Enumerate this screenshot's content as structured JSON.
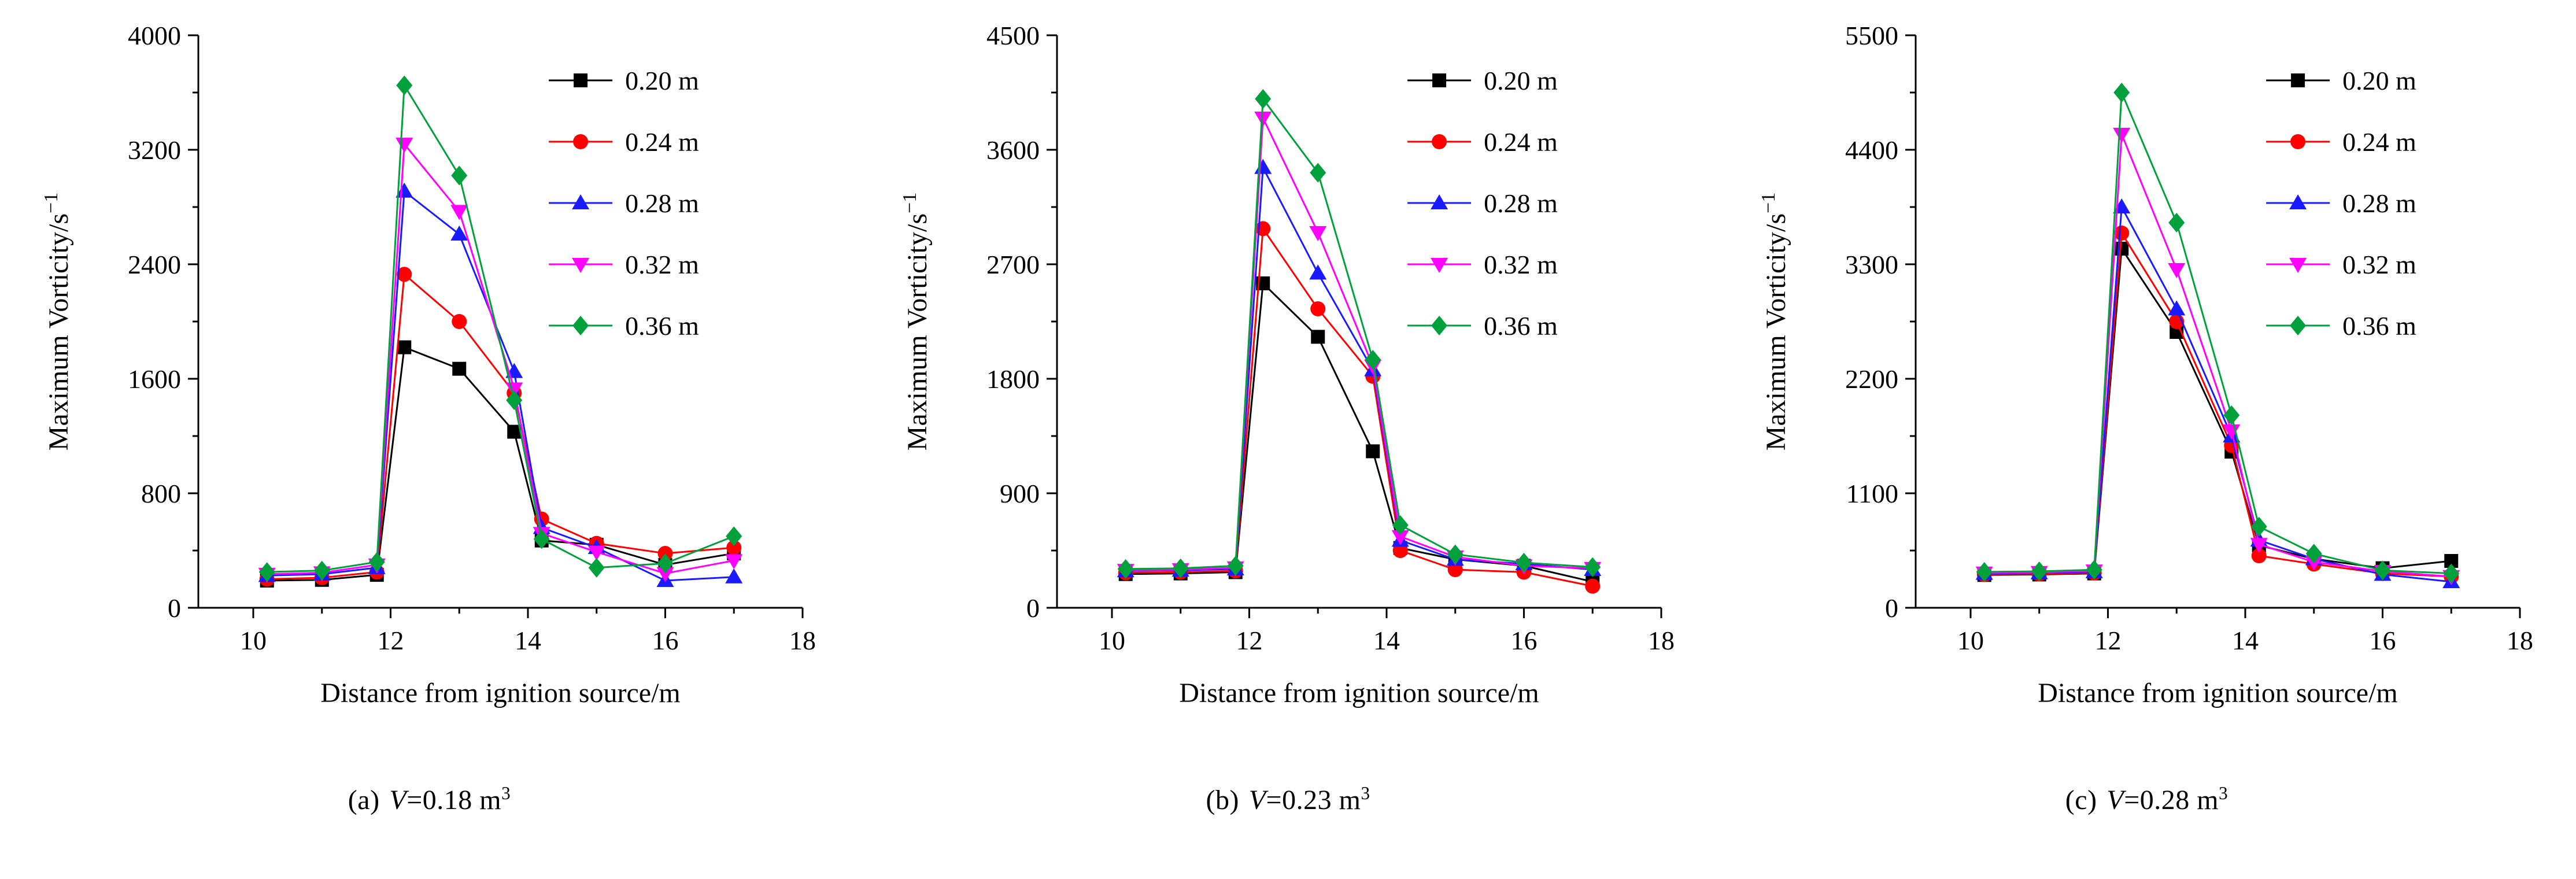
{
  "figure": {
    "background": "#ffffff",
    "legend_labels": [
      "0.20 m",
      "0.24 m",
      "0.28 m",
      "0.32 m",
      "0.36 m"
    ]
  },
  "chart_data": [
    {
      "type": "line",
      "title": "",
      "xlabel": "Distance from ignition source/m",
      "ylabel": "Maximum Vorticity/s",
      "ylabel_superscript": "−1",
      "xlim": [
        9.2,
        18
      ],
      "ylim": [
        0,
        4000
      ],
      "xticks": [
        10,
        12,
        14,
        16,
        18
      ],
      "xticks_minor": [
        11,
        13,
        15,
        17
      ],
      "yticks": [
        0,
        800,
        1600,
        2400,
        3200,
        4000
      ],
      "yticks_minor": [
        400,
        1200,
        2000,
        2800,
        3600
      ],
      "grid": false,
      "legend_position": "top-right",
      "x": [
        10.2,
        11,
        11.8,
        12.2,
        13,
        13.8,
        14.2,
        15,
        16,
        17
      ],
      "series": [
        {
          "name": "0.20 m",
          "marker": "square",
          "color": "#000000",
          "values": [
            190,
            195,
            230,
            1820,
            1670,
            1230,
            470,
            440,
            300,
            380
          ]
        },
        {
          "name": "0.24 m",
          "marker": "circle",
          "color": "#ff0000",
          "values": [
            200,
            210,
            250,
            2330,
            2000,
            1500,
            620,
            450,
            380,
            420
          ]
        },
        {
          "name": "0.28 m",
          "marker": "triangle-up",
          "color": "#1a1aff",
          "values": [
            225,
            235,
            280,
            2910,
            2610,
            1650,
            560,
            420,
            190,
            215
          ]
        },
        {
          "name": "0.32 m",
          "marker": "triangle-down",
          "color": "#ff00ff",
          "values": [
            235,
            245,
            300,
            3240,
            2770,
            1530,
            520,
            390,
            240,
            330
          ]
        },
        {
          "name": "0.36 m",
          "marker": "diamond",
          "color": "#00a03c",
          "values": [
            250,
            260,
            320,
            3650,
            3020,
            1450,
            480,
            280,
            310,
            500
          ]
        }
      ],
      "caption": {
        "index": "(a)",
        "symbol": "V",
        "value": "=0.18 m",
        "superscript": "3"
      }
    },
    {
      "type": "line",
      "title": "",
      "xlabel": "Distance from ignition source/m",
      "ylabel": "Maximum Vorticity/s",
      "ylabel_superscript": "−1",
      "xlim": [
        9.2,
        18
      ],
      "ylim": [
        0,
        4500
      ],
      "xticks": [
        10,
        12,
        14,
        16,
        18
      ],
      "xticks_minor": [
        11,
        13,
        15,
        17
      ],
      "yticks": [
        0,
        900,
        1800,
        2700,
        3600,
        4500
      ],
      "yticks_minor": [
        450,
        1350,
        2250,
        3150,
        4050
      ],
      "grid": false,
      "legend_position": "top-right",
      "x": [
        10.2,
        11,
        11.8,
        12.2,
        13,
        13.8,
        14.2,
        15,
        16,
        17
      ],
      "series": [
        {
          "name": "0.20 m",
          "marker": "square",
          "color": "#000000",
          "values": [
            265,
            270,
            280,
            2550,
            2130,
            1230,
            470,
            380,
            330,
            205
          ]
        },
        {
          "name": "0.24 m",
          "marker": "circle",
          "color": "#ff0000",
          "values": [
            275,
            280,
            290,
            2980,
            2350,
            1820,
            450,
            300,
            280,
            170
          ]
        },
        {
          "name": "0.28 m",
          "marker": "triangle-up",
          "color": "#1a1aff",
          "values": [
            290,
            295,
            305,
            3460,
            2630,
            1870,
            530,
            380,
            345,
            300
          ]
        },
        {
          "name": "0.32 m",
          "marker": "triangle-down",
          "color": "#ff00ff",
          "values": [
            295,
            300,
            315,
            3850,
            2950,
            1900,
            560,
            400,
            330,
            310
          ]
        },
        {
          "name": "0.36 m",
          "marker": "diamond",
          "color": "#00a03c",
          "values": [
            305,
            310,
            330,
            4000,
            3420,
            1950,
            650,
            420,
            355,
            320
          ]
        }
      ],
      "caption": {
        "index": "(b)",
        "symbol": "V",
        "value": "=0.23 m",
        "superscript": "3"
      }
    },
    {
      "type": "line",
      "title": "",
      "xlabel": "Distance from ignition source/m",
      "ylabel": "Maximum Vorticity/s",
      "ylabel_superscript": "−1",
      "xlim": [
        9.2,
        18
      ],
      "ylim": [
        0,
        5500
      ],
      "xticks": [
        10,
        12,
        14,
        16,
        18
      ],
      "xticks_minor": [
        11,
        13,
        15,
        17
      ],
      "yticks": [
        0,
        1100,
        2200,
        3300,
        4400,
        5500
      ],
      "yticks_minor": [
        550,
        1650,
        2750,
        3850,
        4950
      ],
      "grid": false,
      "legend_position": "top-right",
      "x": [
        10.2,
        11,
        11.8,
        12.2,
        13,
        13.8,
        14.2,
        15,
        16,
        17
      ],
      "series": [
        {
          "name": "0.20 m",
          "marker": "square",
          "color": "#000000",
          "values": [
            315,
            320,
            330,
            3450,
            2650,
            1500,
            600,
            470,
            380,
            450
          ]
        },
        {
          "name": "0.24 m",
          "marker": "circle",
          "color": "#ff0000",
          "values": [
            320,
            325,
            335,
            3600,
            2750,
            1560,
            500,
            420,
            330,
            300
          ]
        },
        {
          "name": "0.28 m",
          "marker": "triangle-up",
          "color": "#1a1aff",
          "values": [
            330,
            335,
            345,
            3850,
            2870,
            1650,
            650,
            470,
            320,
            250
          ]
        },
        {
          "name": "0.32 m",
          "marker": "triangle-down",
          "color": "#ff00ff",
          "values": [
            335,
            340,
            355,
            4550,
            3250,
            1700,
            610,
            440,
            350,
            300
          ]
        },
        {
          "name": "0.36 m",
          "marker": "diamond",
          "color": "#00a03c",
          "values": [
            345,
            350,
            365,
            4950,
            3700,
            1850,
            780,
            520,
            360,
            330
          ]
        }
      ],
      "caption": {
        "index": "(c)",
        "symbol": "V",
        "value": "=0.28 m",
        "superscript": "3"
      }
    }
  ]
}
